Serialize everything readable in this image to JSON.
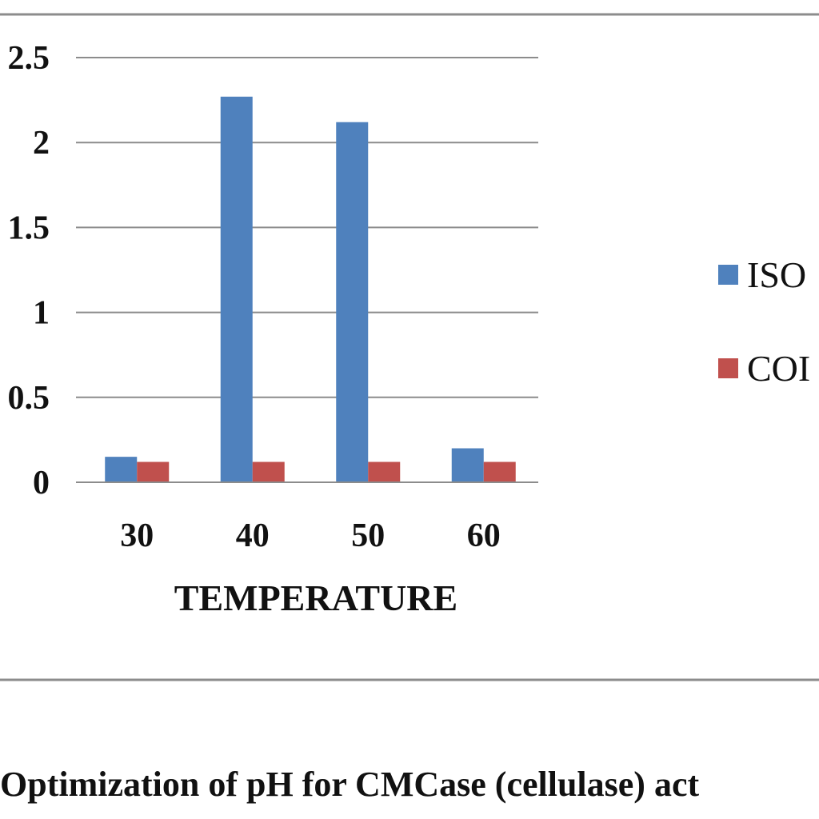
{
  "caption": "Optimization of pH for CMCase (cellulase) act",
  "colors": {
    "series_1": "#4f81bd",
    "series_2": "#c0504d",
    "grid": "#8c8c8c",
    "frame": "#8c8c8c"
  },
  "chart_data": {
    "type": "bar",
    "title": "",
    "xlabel": "TEMPERATURE",
    "ylabel": "",
    "categories": [
      "30",
      "40",
      "50",
      "60"
    ],
    "ylim": [
      0,
      2.5
    ],
    "yticks": [
      "0",
      "0.5",
      "1",
      "1.5",
      "2",
      "2.5"
    ],
    "grid": true,
    "legend_position": "right",
    "series": [
      {
        "name": "ISO",
        "values": [
          0.15,
          2.27,
          2.12,
          0.2
        ]
      },
      {
        "name": "COI",
        "values": [
          0.12,
          0.12,
          0.12,
          0.12
        ]
      }
    ]
  }
}
